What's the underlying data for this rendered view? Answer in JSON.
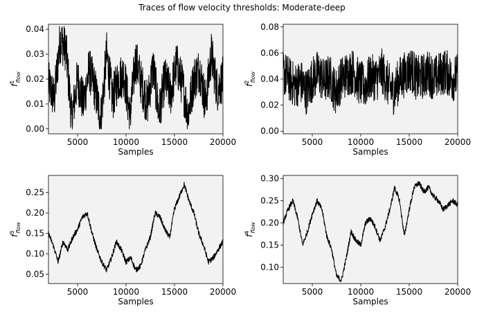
{
  "figure": {
    "title": "Traces of flow velocity thresholds: Moderate-deep"
  },
  "chart_data": [
    {
      "type": "line",
      "panel": "top-left",
      "xlabel": "Samples",
      "ylabel_main": "f",
      "ylabel_sup": "1",
      "ylabel_sub": "flow",
      "xlim": [
        2000,
        20000
      ],
      "ylim": [
        -0.002,
        0.042
      ],
      "xticks": [
        5000,
        10000,
        15000,
        20000
      ],
      "yticks": [
        0.0,
        0.01,
        0.02,
        0.03,
        0.04
      ],
      "ytick_labels": [
        "0.00",
        "0.01",
        "0.02",
        "0.03",
        "0.04"
      ],
      "line_color": "#000000",
      "background": "#f2f2f2",
      "grid": false,
      "series": [
        {
          "x": [
            2000,
            2600,
            3200,
            3800,
            4400,
            5000,
            5600,
            6200,
            6800,
            7400,
            8000,
            8600,
            9200,
            9800,
            10400,
            11000,
            11600,
            12200,
            12800,
            13400,
            14000,
            14600,
            15200,
            15800,
            16400,
            17000,
            17600,
            18200,
            18800,
            19400,
            20000
          ],
          "y": [
            0.018,
            0.012,
            0.036,
            0.032,
            0.004,
            0.02,
            0.01,
            0.024,
            0.016,
            0.004,
            0.03,
            0.012,
            0.02,
            0.022,
            0.005,
            0.028,
            0.018,
            0.01,
            0.025,
            0.006,
            0.02,
            0.014,
            0.026,
            0.018,
            0.006,
            0.02,
            0.024,
            0.01,
            0.03,
            0.016,
            0.02
          ]
        }
      ]
    },
    {
      "type": "line",
      "panel": "top-right",
      "xlabel": "Samples",
      "ylabel_main": "f",
      "ylabel_sup": "2",
      "ylabel_sub": "flow",
      "xlim": [
        2000,
        20000
      ],
      "ylim": [
        -0.002,
        0.082
      ],
      "xticks": [
        5000,
        10000,
        15000,
        20000
      ],
      "yticks": [
        0.0,
        0.02,
        0.04,
        0.06,
        0.08
      ],
      "ytick_labels": [
        "0.00",
        "0.02",
        "0.04",
        "0.06",
        "0.08"
      ],
      "line_color": "#000000",
      "background": "#f2f2f2",
      "grid": false,
      "series": [
        {
          "x": [
            2000,
            2600,
            3200,
            3800,
            4400,
            5000,
            5600,
            6200,
            6800,
            7400,
            8000,
            8600,
            9200,
            9800,
            10400,
            11000,
            11600,
            12200,
            12800,
            13400,
            14000,
            14600,
            15200,
            15800,
            16400,
            17000,
            17600,
            18200,
            18800,
            19400,
            20000
          ],
          "y": [
            0.045,
            0.04,
            0.035,
            0.038,
            0.03,
            0.04,
            0.045,
            0.038,
            0.042,
            0.03,
            0.04,
            0.044,
            0.046,
            0.038,
            0.034,
            0.042,
            0.04,
            0.046,
            0.036,
            0.03,
            0.04,
            0.044,
            0.048,
            0.04,
            0.042,
            0.045,
            0.04,
            0.044,
            0.046,
            0.04,
            0.042
          ]
        }
      ]
    },
    {
      "type": "line",
      "panel": "bottom-left",
      "xlabel": "Samples",
      "ylabel_main": "f",
      "ylabel_sup": "3",
      "ylabel_sub": "flow",
      "xlim": [
        2000,
        20000
      ],
      "ylim": [
        0.027,
        0.292
      ],
      "xticks": [
        5000,
        10000,
        15000,
        20000
      ],
      "yticks": [
        0.05,
        0.1,
        0.15,
        0.2,
        0.25
      ],
      "ytick_labels": [
        "0.05",
        "0.10",
        "0.15",
        "0.20",
        "0.25"
      ],
      "line_color": "#000000",
      "background": "#f2f2f2",
      "grid": false,
      "series": [
        {
          "x": [
            2000,
            2500,
            3000,
            3500,
            4000,
            4500,
            5000,
            5500,
            6000,
            6500,
            7000,
            7500,
            8000,
            8500,
            9000,
            9500,
            10000,
            10500,
            11000,
            11500,
            12000,
            12500,
            13000,
            13500,
            14000,
            14500,
            15000,
            15500,
            16000,
            16500,
            17000,
            17500,
            18000,
            18500,
            19000,
            19500,
            20000
          ],
          "y": [
            0.15,
            0.12,
            0.08,
            0.13,
            0.11,
            0.14,
            0.16,
            0.19,
            0.2,
            0.15,
            0.11,
            0.08,
            0.06,
            0.09,
            0.13,
            0.11,
            0.08,
            0.09,
            0.06,
            0.07,
            0.11,
            0.14,
            0.2,
            0.19,
            0.16,
            0.14,
            0.21,
            0.24,
            0.27,
            0.23,
            0.2,
            0.15,
            0.12,
            0.08,
            0.09,
            0.11,
            0.13
          ]
        }
      ]
    },
    {
      "type": "line",
      "panel": "bottom-right",
      "xlabel": "Samples",
      "ylabel_main": "f",
      "ylabel_sup": "4",
      "ylabel_sub": "flow",
      "xlim": [
        2000,
        20000
      ],
      "ylim": [
        0.063,
        0.307
      ],
      "xticks": [
        5000,
        10000,
        15000,
        20000
      ],
      "yticks": [
        0.1,
        0.15,
        0.2,
        0.25,
        0.3
      ],
      "ytick_labels": [
        "0.10",
        "0.15",
        "0.20",
        "0.25",
        "0.30"
      ],
      "line_color": "#000000",
      "background": "#f2f2f2",
      "grid": false,
      "series": [
        {
          "x": [
            2000,
            2500,
            3000,
            3500,
            4000,
            4500,
            5000,
            5500,
            6000,
            6500,
            7000,
            7500,
            8000,
            8500,
            9000,
            9500,
            10000,
            10500,
            11000,
            11500,
            12000,
            12500,
            13000,
            13500,
            14000,
            14500,
            15000,
            15500,
            16000,
            16500,
            17000,
            17500,
            18000,
            18500,
            19000,
            19500,
            20000
          ],
          "y": [
            0.2,
            0.23,
            0.25,
            0.21,
            0.15,
            0.18,
            0.22,
            0.25,
            0.23,
            0.17,
            0.14,
            0.08,
            0.07,
            0.12,
            0.18,
            0.16,
            0.15,
            0.2,
            0.21,
            0.19,
            0.16,
            0.19,
            0.23,
            0.28,
            0.25,
            0.17,
            0.23,
            0.28,
            0.29,
            0.27,
            0.28,
            0.26,
            0.25,
            0.23,
            0.24,
            0.25,
            0.24
          ]
        }
      ]
    }
  ]
}
